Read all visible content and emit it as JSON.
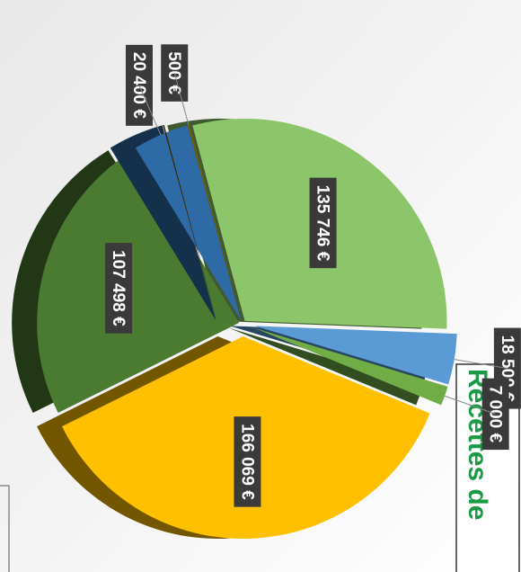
{
  "chart_data": {
    "type": "pie",
    "title": "Recettes de",
    "categories": [
      null,
      null,
      null,
      null,
      null,
      null,
      null
    ],
    "values": [
      135746,
      18500,
      7000,
      166069,
      107498,
      20400,
      500
    ],
    "value_labels": [
      "135 746 €",
      "18 500 €",
      "7 000 €",
      "166 069 €",
      "107 498 €",
      "20 400 €",
      "500 €"
    ],
    "colors": [
      "#8cc56a",
      "#5b9bd5",
      "#70ad47",
      "#ffc000",
      "#4b7a31",
      "#2e6aa6",
      "#7f6000"
    ]
  }
}
